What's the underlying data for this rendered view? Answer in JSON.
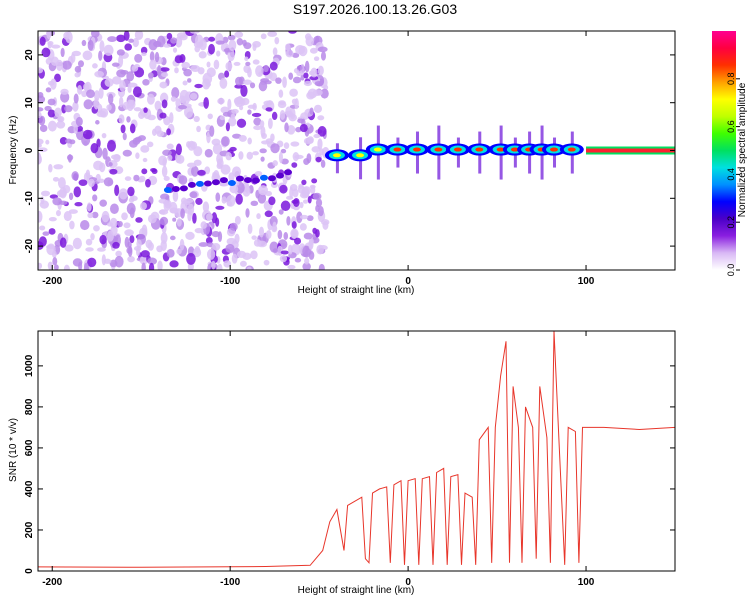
{
  "figure": {
    "title": "S197.2026.100.13.26.G03"
  },
  "chart_data": [
    {
      "type": "heatmap",
      "xlabel": "Height of straight line (km)",
      "ylabel": "Frequency (Hz)",
      "xlim": [
        -208,
        150
      ],
      "ylim": [
        -25,
        25
      ],
      "xticks": [
        -200,
        -100,
        0,
        100
      ],
      "yticks": [
        -20,
        -10,
        0,
        10,
        20
      ],
      "colorbar": {
        "label": "Normalized spectral amplitude",
        "range": [
          0,
          1
        ],
        "ticks": [
          0.0,
          0.2,
          0.4,
          0.6,
          0.8
        ],
        "colors": [
          "#ffffff",
          "#d9b8f5",
          "#8a1fe0",
          "#4b00c8",
          "#0000ff",
          "#0090ff",
          "#00e0e0",
          "#00e060",
          "#40ff00",
          "#c0ff00",
          "#ffff00",
          "#ffa000",
          "#ff3000",
          "#ff0040",
          "#ff0090"
        ]
      },
      "notes": "Noise region x < -48 km; narrow tone near 0 Hz for x > -48 km; continuous strong line at 0 Hz for x > 100 km; weak drift from -8 Hz at -135 km to -5 Hz at -65 km."
    },
    {
      "type": "line",
      "xlabel": "Height of straight line (km)",
      "ylabel": "SNR (10 * v/v)",
      "xlim": [
        -208,
        150
      ],
      "ylim": [
        0,
        1170
      ],
      "xticks": [
        -200,
        -100,
        0,
        100
      ],
      "yticks": [
        0,
        200,
        400,
        600,
        800,
        1000
      ],
      "color": "#e8362b",
      "points": [
        [
          -208,
          20
        ],
        [
          -150,
          18
        ],
        [
          -80,
          22
        ],
        [
          -55,
          28
        ],
        [
          -48,
          100
        ],
        [
          -44,
          240
        ],
        [
          -40,
          300
        ],
        [
          -36,
          100
        ],
        [
          -34,
          320
        ],
        [
          -30,
          340
        ],
        [
          -26,
          360
        ],
        [
          -24,
          60
        ],
        [
          -22,
          40
        ],
        [
          -20,
          380
        ],
        [
          -16,
          400
        ],
        [
          -12,
          410
        ],
        [
          -10,
          40
        ],
        [
          -8,
          420
        ],
        [
          -4,
          440
        ],
        [
          -2,
          30
        ],
        [
          0,
          440
        ],
        [
          4,
          450
        ],
        [
          6,
          30
        ],
        [
          8,
          450
        ],
        [
          12,
          460
        ],
        [
          14,
          30
        ],
        [
          16,
          480
        ],
        [
          20,
          500
        ],
        [
          22,
          30
        ],
        [
          24,
          460
        ],
        [
          28,
          470
        ],
        [
          30,
          30
        ],
        [
          32,
          380
        ],
        [
          36,
          360
        ],
        [
          38,
          30
        ],
        [
          40,
          640
        ],
        [
          45,
          700
        ],
        [
          47,
          40
        ],
        [
          49,
          700
        ],
        [
          52,
          950
        ],
        [
          55,
          1120
        ],
        [
          57,
          40
        ],
        [
          59,
          900
        ],
        [
          62,
          700
        ],
        [
          64,
          40
        ],
        [
          66,
          800
        ],
        [
          70,
          700
        ],
        [
          72,
          60
        ],
        [
          74,
          900
        ],
        [
          78,
          650
        ],
        [
          80,
          40
        ],
        [
          82,
          1170
        ],
        [
          85,
          600
        ],
        [
          88,
          30
        ],
        [
          90,
          700
        ],
        [
          94,
          680
        ],
        [
          96,
          40
        ],
        [
          98,
          700
        ],
        [
          110,
          700
        ],
        [
          130,
          690
        ],
        [
          150,
          700
        ]
      ]
    }
  ]
}
